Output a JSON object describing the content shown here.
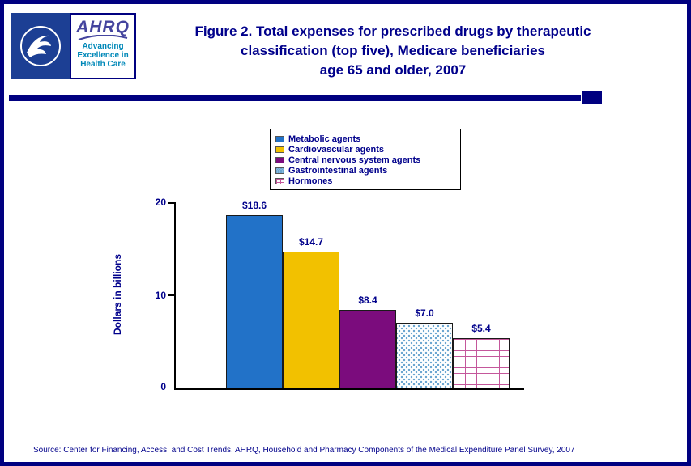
{
  "header": {
    "title_line1": "Figure 2. Total expenses for prescribed drugs by therapeutic",
    "title_line2": "classification (top five), Medicare beneficiaries",
    "title_line3": "age 65 and older, 2007",
    "logo": {
      "acronym": "AHRQ",
      "tagline_line1": "Advancing",
      "tagline_line2": "Excellence in",
      "tagline_line3": "Health Care"
    }
  },
  "chart_data": {
    "type": "bar",
    "title": "Figure 2. Total expenses for prescribed drugs by therapeutic classification (top five), Medicare beneficiaries age 65 and older, 2007",
    "categories": [
      "Metabolic agents",
      "Cardiovascular agents",
      "Central nervous system agents",
      "Gastrointestinal agents",
      "Hormones"
    ],
    "values": [
      18.6,
      14.7,
      8.4,
      7.0,
      5.4
    ],
    "value_labels": [
      "$18.6",
      "$14.7",
      "$8.4",
      "$7.0",
      "$5.4"
    ],
    "xlabel": "",
    "ylabel": "Dollars in billions",
    "ylim": [
      0,
      20
    ],
    "yticks": [
      20,
      10,
      0
    ],
    "ytick_labels": [
      "20",
      "10",
      "0"
    ],
    "grid": false,
    "legend_position": "top-center",
    "legend": [
      "Metabolic agents",
      "Cardiovascular agents",
      "Central nervous system agents",
      "Gastrointestinal agents",
      "Hormones"
    ],
    "bar_styles": [
      "solid-blue",
      "solid-gold",
      "solid-purple",
      "dotted-lightblue",
      "brick-pink"
    ],
    "colors": {
      "bar_blue": "#2272C8",
      "bar_gold": "#F2C100",
      "bar_purple": "#7B0C7D",
      "dot_lightblue": "#66A3CF",
      "brick_pink": "#C4579B",
      "text_navy": "#00008B",
      "border_navy": "#000080"
    }
  },
  "footer": {
    "source": "Source: Center for Financing, Access, and Cost Trends, AHRQ, Household and Pharmacy Components of the Medical Expenditure Panel Survey, 2007"
  }
}
